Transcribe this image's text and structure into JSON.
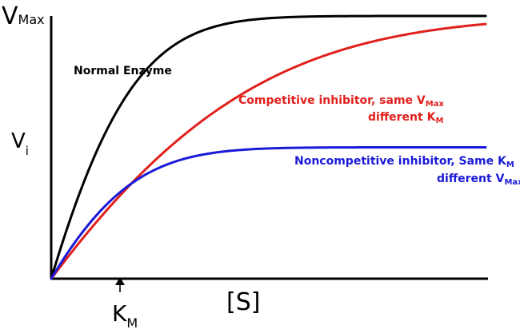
{
  "chart_data": {
    "type": "line",
    "title": "",
    "y_axis": {
      "label_main": "V",
      "label_sub": "i",
      "top_label_main": "V",
      "top_label_sub": "Max"
    },
    "x_axis": {
      "label": "[S]",
      "km_label_main": "K",
      "km_label_sub": "M"
    },
    "grid": false,
    "series": [
      {
        "color": "#000000",
        "vmax": 1.0,
        "km": 1.0,
        "labels": [
          {
            "main": "Normal Enzyme"
          }
        ]
      },
      {
        "color": "#e0201c",
        "vmax": 1.0,
        "km": 2.5,
        "labels": [
          {
            "main": "Competitive inhibitor,  same V",
            "sub": "Max"
          },
          {
            "main": "different K",
            "sub": "M"
          }
        ]
      },
      {
        "color": "#1a1ad8",
        "vmax": 0.5,
        "km": 1.0,
        "labels": [
          {
            "main": "Noncompetitive inhibitor,  Same K",
            "sub": "M"
          },
          {
            "main": "different V",
            "sub": "Max"
          }
        ]
      }
    ]
  }
}
